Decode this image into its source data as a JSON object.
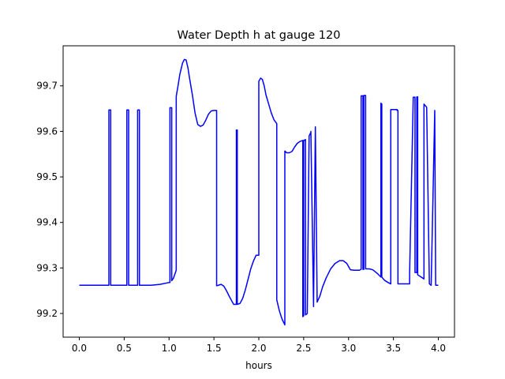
{
  "chart_data": {
    "type": "line",
    "title": "Water Depth h at gauge 120",
    "xlabel": "hours",
    "ylabel": "",
    "xlim": [
      -0.18,
      4.18
    ],
    "ylim": [
      99.148,
      99.788
    ],
    "x_ticks": [
      0.0,
      0.5,
      1.0,
      1.5,
      2.0,
      2.5,
      3.0,
      3.5,
      4.0
    ],
    "x_tick_labels": [
      "0.0",
      "0.5",
      "1.0",
      "1.5",
      "2.0",
      "2.5",
      "3.0",
      "3.5",
      "4.0"
    ],
    "y_ticks": [
      99.2,
      99.3,
      99.4,
      99.5,
      99.6,
      99.7
    ],
    "y_tick_labels": [
      "99.2",
      "99.3",
      "99.4",
      "99.5",
      "99.6",
      "99.7"
    ],
    "grid": false,
    "series": [
      {
        "color": "#0000ff",
        "x": [
          0.0,
          0.33,
          0.33,
          0.35,
          0.35,
          0.53,
          0.53,
          0.55,
          0.55,
          0.65,
          0.65,
          0.67,
          0.67,
          0.8,
          0.9,
          1.0,
          1.01,
          1.01,
          1.03,
          1.03,
          1.05,
          1.08,
          1.08,
          1.1,
          1.12,
          1.15,
          1.17,
          1.19,
          1.21,
          1.23,
          1.26,
          1.29,
          1.32,
          1.35,
          1.38,
          1.41,
          1.44,
          1.47,
          1.5,
          1.53,
          1.53,
          1.55,
          1.58,
          1.61,
          1.64,
          1.67,
          1.7,
          1.72,
          1.75,
          1.75,
          1.76,
          1.76,
          1.79,
          1.82,
          1.85,
          1.88,
          1.91,
          1.94,
          1.97,
          2.0,
          2.0,
          2.02,
          2.04,
          2.06,
          2.08,
          2.11,
          2.14,
          2.17,
          2.2,
          2.2,
          2.23,
          2.26,
          2.29,
          2.29,
          2.31,
          2.34,
          2.37,
          2.4,
          2.43,
          2.46,
          2.49,
          2.49,
          2.5,
          2.5,
          2.52,
          2.52,
          2.54,
          2.56,
          2.56,
          2.58,
          2.58,
          2.61,
          2.61,
          2.63,
          2.63,
          2.65,
          2.68,
          2.71,
          2.75,
          2.8,
          2.85,
          2.9,
          2.94,
          2.98,
          3.02,
          3.06,
          3.09,
          3.12,
          3.14,
          3.14,
          3.16,
          3.16,
          3.17,
          3.17,
          3.19,
          3.19,
          3.23,
          3.27,
          3.32,
          3.36,
          3.36,
          3.37,
          3.37,
          3.4,
          3.44,
          3.47,
          3.47,
          3.54,
          3.54,
          3.55,
          3.55,
          3.68,
          3.68,
          3.72,
          3.72,
          3.74,
          3.74,
          3.76,
          3.76,
          3.77,
          3.77,
          3.84,
          3.84,
          3.87,
          3.87,
          3.9,
          3.92,
          3.92,
          3.96,
          3.96,
          3.97,
          3.97,
          4.0
        ],
        "y": [
          99.262,
          99.262,
          99.647,
          99.647,
          99.262,
          99.262,
          99.647,
          99.647,
          99.262,
          99.262,
          99.647,
          99.647,
          99.262,
          99.262,
          99.264,
          99.268,
          99.268,
          99.652,
          99.652,
          99.272,
          99.278,
          99.295,
          99.677,
          99.7,
          99.725,
          99.75,
          99.758,
          99.757,
          99.74,
          99.715,
          99.68,
          99.64,
          99.615,
          99.611,
          99.614,
          99.625,
          99.638,
          99.645,
          99.646,
          99.646,
          99.261,
          99.262,
          99.264,
          99.26,
          99.25,
          99.238,
          99.227,
          99.22,
          99.22,
          99.603,
          99.603,
          99.22,
          99.222,
          99.233,
          99.252,
          99.275,
          99.298,
          99.315,
          99.328,
          99.328,
          99.71,
          99.717,
          99.714,
          99.7,
          99.68,
          99.66,
          99.64,
          99.625,
          99.617,
          99.23,
          99.205,
          99.187,
          99.175,
          99.557,
          99.553,
          99.553,
          99.556,
          99.566,
          99.574,
          99.578,
          99.58,
          99.193,
          99.195,
          99.58,
          99.582,
          99.197,
          99.2,
          99.585,
          99.59,
          99.598,
          99.6,
          99.215,
          99.22,
          99.61,
          99.61,
          99.225,
          99.238,
          99.258,
          99.278,
          99.298,
          99.31,
          99.316,
          99.316,
          99.31,
          99.296,
          99.295,
          99.295,
          99.295,
          99.297,
          99.678,
          99.678,
          99.297,
          99.297,
          99.679,
          99.679,
          99.298,
          99.298,
          99.296,
          99.288,
          99.28,
          99.662,
          99.66,
          99.28,
          99.273,
          99.268,
          99.265,
          99.648,
          99.648,
          99.646,
          99.646,
          99.265,
          99.265,
          99.288,
          99.67,
          99.675,
          99.675,
          99.29,
          99.29,
          99.676,
          99.676,
          99.285,
          99.276,
          99.66,
          99.653,
          99.653,
          99.265,
          99.262,
          99.262,
          99.646,
          99.646,
          99.262,
          99.262,
          99.262
        ]
      }
    ]
  }
}
